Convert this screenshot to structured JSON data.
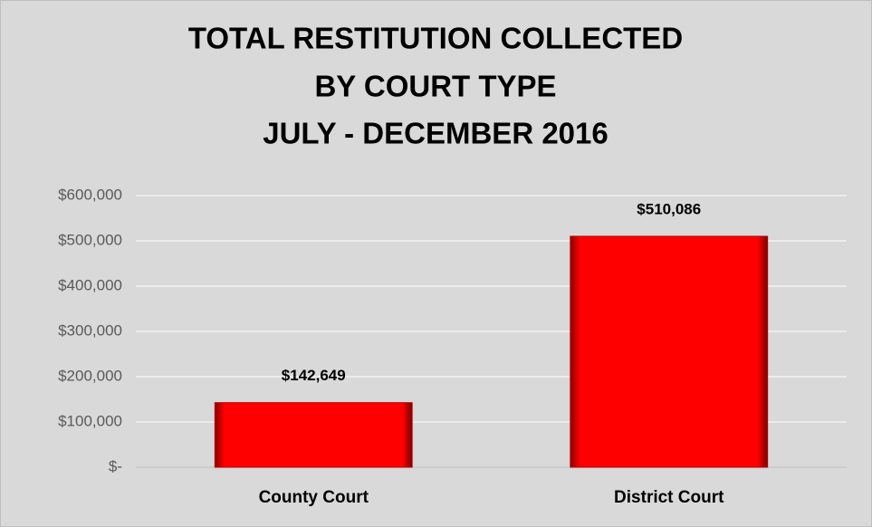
{
  "chart_data": {
    "type": "bar",
    "title": [
      "TOTAL RESTITUTION COLLECTED",
      "BY COURT TYPE",
      "JULY - DECEMBER 2016"
    ],
    "categories": [
      "County Court",
      "District Court"
    ],
    "values": [
      142649,
      510086
    ],
    "value_labels": [
      "$142,649",
      "$510,086"
    ],
    "color": "#ff0000",
    "ylim": [
      0,
      600000
    ],
    "yticks": [
      {
        "value": 0,
        "label": "$-"
      },
      {
        "value": 100000,
        "label": "$100,000"
      },
      {
        "value": 200000,
        "label": "$200,000"
      },
      {
        "value": 300000,
        "label": "$300,000"
      },
      {
        "value": 400000,
        "label": "$400,000"
      },
      {
        "value": 500000,
        "label": "$500,000"
      },
      {
        "value": 600000,
        "label": "$600,000"
      }
    ],
    "grid": true
  }
}
